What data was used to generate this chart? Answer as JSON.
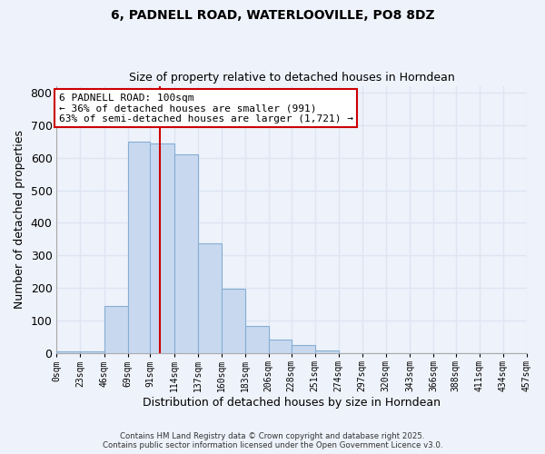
{
  "title": "6, PADNELL ROAD, WATERLOOVILLE, PO8 8DZ",
  "subtitle": "Size of property relative to detached houses in Horndean",
  "xlabel": "Distribution of detached houses by size in Horndean",
  "ylabel": "Number of detached properties",
  "bin_edges": [
    0,
    23,
    46,
    69,
    91,
    114,
    137,
    160,
    183,
    206,
    228,
    251,
    274,
    297,
    320,
    343,
    366,
    388,
    411,
    434,
    457
  ],
  "bin_labels": [
    "0sqm",
    "23sqm",
    "46sqm",
    "69sqm",
    "91sqm",
    "114sqm",
    "137sqm",
    "160sqm",
    "183sqm",
    "206sqm",
    "228sqm",
    "251sqm",
    "274sqm",
    "297sqm",
    "320sqm",
    "343sqm",
    "366sqm",
    "388sqm",
    "411sqm",
    "434sqm",
    "457sqm"
  ],
  "bar_heights": [
    5,
    5,
    145,
    648,
    643,
    610,
    337,
    199,
    83,
    43,
    25,
    10,
    2,
    0,
    0,
    0,
    0,
    0,
    0,
    2
  ],
  "bar_color": "#c8d9ef",
  "bar_edgecolor": "#85aed4",
  "vline_x": 100,
  "vline_color": "#cc0000",
  "ylim": [
    0,
    820
  ],
  "yticks": [
    0,
    100,
    200,
    300,
    400,
    500,
    600,
    700,
    800
  ],
  "annotation_title": "6 PADNELL ROAD: 100sqm",
  "annotation_line1": "← 36% of detached houses are smaller (991)",
  "annotation_line2": "63% of semi-detached houses are larger (1,721) →",
  "annotation_box_color": "#ffffff",
  "annotation_box_edgecolor": "#cc0000",
  "footer1": "Contains HM Land Registry data © Crown copyright and database right 2025.",
  "footer2": "Contains public sector information licensed under the Open Government Licence v3.0.",
  "background_color": "#eef2fa",
  "grid_color": "#dde5f3"
}
